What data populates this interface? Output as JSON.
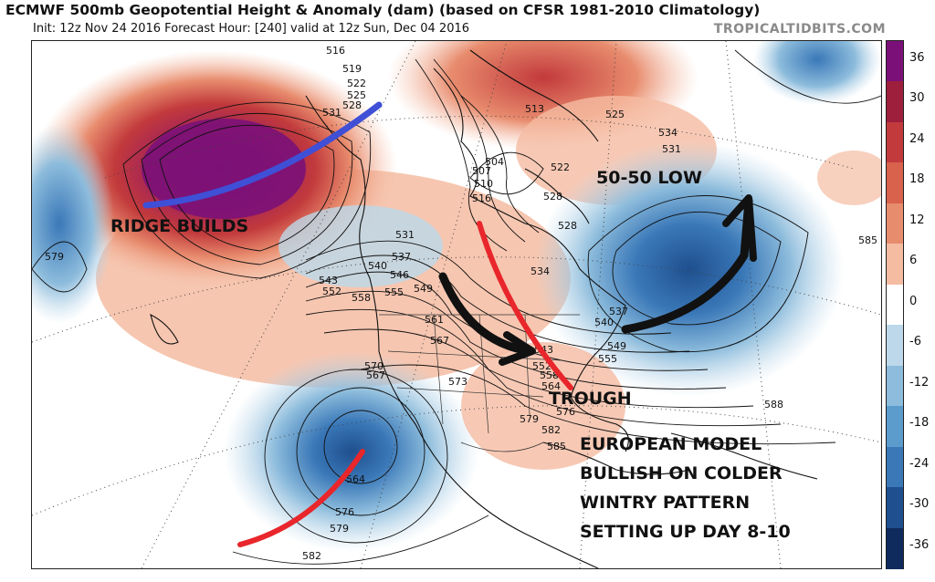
{
  "header": {
    "title": "ECMWF 500mb Geopotential Height & Anomaly (dam) (based on CFSR 1981-2010 Climatology)",
    "subtitle": "Init: 12z Nov 24 2016   Forecast Hour: [240]   valid at 12z Sun, Dec 04 2016",
    "brand": "TROPICALTIDBITS.COM"
  },
  "colorbar": {
    "labels": [
      "36",
      "30",
      "24",
      "18",
      "12",
      "6",
      "0",
      "-6",
      "-12",
      "-18",
      "-24",
      "-30",
      "-36"
    ],
    "colors": [
      "#7b1178",
      "#9e1f3c",
      "#c23a3c",
      "#d8624c",
      "#e88c6e",
      "#f5bca2",
      "#ffffff",
      "#bcd8ea",
      "#8dbcdc",
      "#5c9ccd",
      "#3a78b8",
      "#1f4f8e",
      "#0f2a5c"
    ]
  },
  "annotations": {
    "ridge": "RIDGE BUILDS",
    "low": "50-50 LOW",
    "trough": "TROUGH",
    "line1": "EUROPEAN MODEL",
    "line2": "BULLISH ON COLDER",
    "line3": "WINTRY PATTERN",
    "line4": "SETTING UP DAY 8-10"
  },
  "height_labels": [
    "516",
    "519",
    "522",
    "525",
    "528",
    "531",
    "504",
    "507",
    "510",
    "513",
    "516",
    "528",
    "525",
    "534",
    "531",
    "531",
    "534",
    "537",
    "540",
    "543",
    "546",
    "549",
    "552",
    "555",
    "558",
    "561",
    "567",
    "570",
    "573",
    "579",
    "576",
    "582",
    "585",
    "588",
    "564",
    "567",
    "576",
    "579",
    "582",
    "585",
    "537",
    "540",
    "543",
    "549",
    "552",
    "555",
    "558",
    "564",
    "579",
    "528",
    "522"
  ]
}
